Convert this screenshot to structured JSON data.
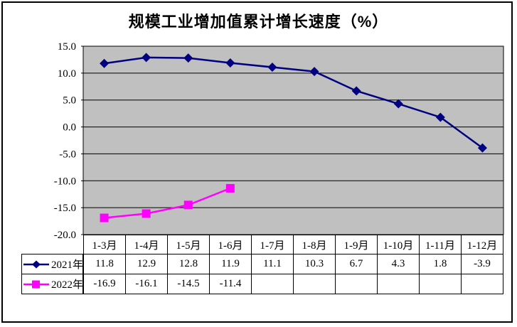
{
  "chart_data": {
    "type": "line",
    "title": "规模工业增加值累计增长速度（%）",
    "categories": [
      "1-3月",
      "1-4月",
      "1-5月",
      "1-6月",
      "1-7月",
      "1-8月",
      "1-9月",
      "1-10月",
      "1-11月",
      "1-12月"
    ],
    "series": [
      {
        "name": "2021年",
        "color": "#000080",
        "marker": "diamond",
        "values": [
          11.8,
          12.9,
          12.8,
          11.9,
          11.1,
          10.3,
          6.7,
          4.3,
          1.8,
          -3.9
        ]
      },
      {
        "name": "2022年",
        "color": "#FF00FF",
        "marker": "square",
        "values": [
          -16.9,
          -16.1,
          -14.5,
          -11.4
        ]
      }
    ],
    "xlabel": "",
    "ylabel": "",
    "ylim": [
      -20,
      15
    ],
    "y_tick_step": 5,
    "y_tick_labels": [
      "15.0",
      "10.0",
      "5.0",
      "0.0",
      "-5.0",
      "-10.0",
      "-15.0",
      "-20.0"
    ],
    "grid": true,
    "plot_bg_color": "#C0C0C0",
    "gridline_color": "#000000",
    "legend_position": "left-of-data-table",
    "data_table": true
  }
}
